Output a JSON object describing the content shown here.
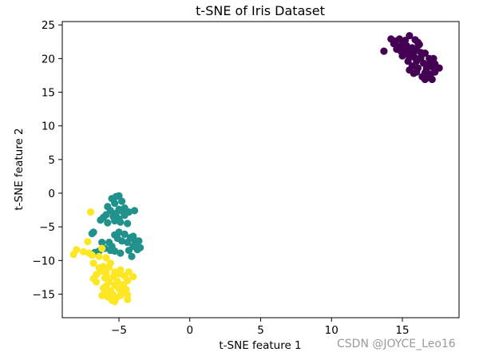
{
  "chart_data": {
    "type": "scatter",
    "title": "t-SNE of Iris Dataset",
    "xlabel": "t-SNE feature 1",
    "ylabel": "t-SNE feature 2",
    "xlim": [
      -9,
      19
    ],
    "ylim": [
      -18.5,
      25.5
    ],
    "xticks": [
      -5,
      0,
      5,
      10,
      15
    ],
    "yticks": [
      -15,
      -10,
      -5,
      0,
      5,
      10,
      15,
      20,
      25
    ],
    "xtick_labels": [
      "−5",
      "0",
      "5",
      "10",
      "15"
    ],
    "ytick_labels": [
      "−15",
      "−10",
      "−5",
      "0",
      "5",
      "10",
      "15",
      "20",
      "25"
    ],
    "grid": false,
    "series": [
      {
        "color": "#440154",
        "points": [
          [
            14.2,
            22.9
          ],
          [
            14.5,
            22.6
          ],
          [
            14.8,
            22.9
          ],
          [
            15.2,
            22.7
          ],
          [
            15.5,
            23.4
          ],
          [
            15.9,
            22.8
          ],
          [
            16.1,
            22.4
          ],
          [
            14.4,
            22.2
          ],
          [
            14.7,
            21.8
          ],
          [
            15.0,
            22.1
          ],
          [
            15.3,
            21.9
          ],
          [
            15.7,
            21.6
          ],
          [
            16.0,
            21.5
          ],
          [
            13.7,
            21.1
          ],
          [
            14.9,
            21.1
          ],
          [
            15.2,
            21.3
          ],
          [
            15.5,
            21.0
          ],
          [
            15.8,
            20.9
          ],
          [
            16.3,
            20.9
          ],
          [
            16.6,
            20.8
          ],
          [
            15.0,
            20.4
          ],
          [
            15.5,
            20.2
          ],
          [
            15.9,
            20.1
          ],
          [
            16.3,
            20.1
          ],
          [
            16.9,
            20.0
          ],
          [
            17.2,
            20.0
          ],
          [
            15.4,
            19.6
          ],
          [
            16.0,
            19.6
          ],
          [
            16.5,
            19.3
          ],
          [
            17.0,
            19.5
          ],
          [
            17.3,
            19.2
          ],
          [
            15.7,
            18.9
          ],
          [
            16.1,
            18.6
          ],
          [
            16.7,
            18.5
          ],
          [
            17.1,
            18.8
          ],
          [
            17.6,
            18.6
          ],
          [
            15.5,
            18.3
          ],
          [
            16.0,
            18.0
          ],
          [
            16.6,
            17.9
          ],
          [
            17.0,
            17.7
          ],
          [
            17.3,
            18.0
          ],
          [
            16.8,
            17.2
          ],
          [
            15.8,
            17.8
          ],
          [
            16.4,
            17.3
          ],
          [
            17.1,
            16.9
          ],
          [
            16.6,
            16.9
          ],
          [
            14.6,
            21.4
          ],
          [
            16.9,
            19.0
          ],
          [
            15.2,
            20.8
          ],
          [
            16.2,
            22.1
          ]
        ]
      },
      {
        "color": "#21918c",
        "points": [
          [
            -5.2,
            -0.5
          ],
          [
            -5.0,
            -0.4
          ],
          [
            -5.5,
            -0.8
          ],
          [
            -4.8,
            -1.2
          ],
          [
            -5.3,
            -1.5
          ],
          [
            -5.8,
            -2.0
          ],
          [
            -4.6,
            -2.2
          ],
          [
            -5.0,
            -2.4
          ],
          [
            -5.6,
            -2.6
          ],
          [
            -3.9,
            -2.6
          ],
          [
            -4.3,
            -2.8
          ],
          [
            -5.2,
            -3.0
          ],
          [
            -5.9,
            -3.2
          ],
          [
            -4.6,
            -3.3
          ],
          [
            -5.4,
            -3.5
          ],
          [
            -6.1,
            -3.6
          ],
          [
            -5.0,
            -3.8
          ],
          [
            -6.3,
            -4.0
          ],
          [
            -4.9,
            -4.3
          ],
          [
            -5.8,
            -4.4
          ],
          [
            -4.4,
            -4.5
          ],
          [
            -6.8,
            -5.8
          ],
          [
            -6.9,
            -6.0
          ],
          [
            -5.0,
            -5.8
          ],
          [
            -5.3,
            -6.2
          ],
          [
            -4.6,
            -6.1
          ],
          [
            -5.1,
            -6.7
          ],
          [
            -4.2,
            -6.6
          ],
          [
            -3.9,
            -7.0
          ],
          [
            -4.8,
            -7.1
          ],
          [
            -3.6,
            -7.1
          ],
          [
            -4.4,
            -7.3
          ],
          [
            -5.7,
            -7.3
          ],
          [
            -6.2,
            -7.3
          ],
          [
            -3.8,
            -7.6
          ],
          [
            -4.0,
            -7.9
          ],
          [
            -3.5,
            -8.1
          ],
          [
            -3.7,
            -8.4
          ],
          [
            -4.3,
            -8.5
          ],
          [
            -5.3,
            -8.6
          ],
          [
            -6.7,
            -8.8
          ],
          [
            -6.4,
            -8.6
          ],
          [
            -5.6,
            -8.5
          ],
          [
            -4.9,
            -8.9
          ],
          [
            -4.1,
            -9.4
          ],
          [
            -5.5,
            -7.9
          ],
          [
            -6.0,
            -8.2
          ],
          [
            -4.7,
            -2.8
          ],
          [
            -5.3,
            -4.1
          ],
          [
            -4.0,
            -6.4
          ]
        ]
      },
      {
        "color": "#fde725",
        "points": [
          [
            -7.0,
            -2.8
          ],
          [
            -7.2,
            -7.2
          ],
          [
            -8.0,
            -8.4
          ],
          [
            -7.5,
            -8.7
          ],
          [
            -8.2,
            -9.1
          ],
          [
            -7.1,
            -8.9
          ],
          [
            -6.9,
            -9.2
          ],
          [
            -6.2,
            -8.2
          ],
          [
            -6.4,
            -9.4
          ],
          [
            -5.9,
            -9.6
          ],
          [
            -6.8,
            -10.4
          ],
          [
            -6.1,
            -10.9
          ],
          [
            -5.6,
            -10.4
          ],
          [
            -6.3,
            -11.6
          ],
          [
            -5.9,
            -11.9
          ],
          [
            -5.3,
            -11.7
          ],
          [
            -4.9,
            -11.4
          ],
          [
            -4.3,
            -11.7
          ],
          [
            -6.6,
            -12.1
          ],
          [
            -6.0,
            -12.6
          ],
          [
            -5.4,
            -12.4
          ],
          [
            -4.6,
            -12.3
          ],
          [
            -4.0,
            -12.4
          ],
          [
            -6.8,
            -12.7
          ],
          [
            -5.7,
            -13.2
          ],
          [
            -5.1,
            -13.1
          ],
          [
            -4.4,
            -13.0
          ],
          [
            -5.9,
            -13.8
          ],
          [
            -5.3,
            -13.7
          ],
          [
            -4.7,
            -13.6
          ],
          [
            -6.1,
            -14.1
          ],
          [
            -5.0,
            -14.2
          ],
          [
            -4.5,
            -14.3
          ],
          [
            -5.6,
            -14.5
          ],
          [
            -4.8,
            -14.9
          ],
          [
            -6.0,
            -14.9
          ],
          [
            -5.4,
            -15.1
          ],
          [
            -4.4,
            -15.1
          ],
          [
            -5.8,
            -15.4
          ],
          [
            -5.2,
            -15.6
          ],
          [
            -5.5,
            -15.9
          ],
          [
            -4.4,
            -15.8
          ],
          [
            -5.3,
            -16.1
          ],
          [
            -6.2,
            -15.2
          ],
          [
            -5.7,
            -11.0
          ],
          [
            -5.0,
            -12.0
          ],
          [
            -6.6,
            -13.2
          ],
          [
            -4.9,
            -15.2
          ],
          [
            -5.9,
            -12.5
          ],
          [
            -6.4,
            -11.1
          ]
        ]
      }
    ]
  },
  "watermark": "CSDN @JOYCE_Leo16"
}
